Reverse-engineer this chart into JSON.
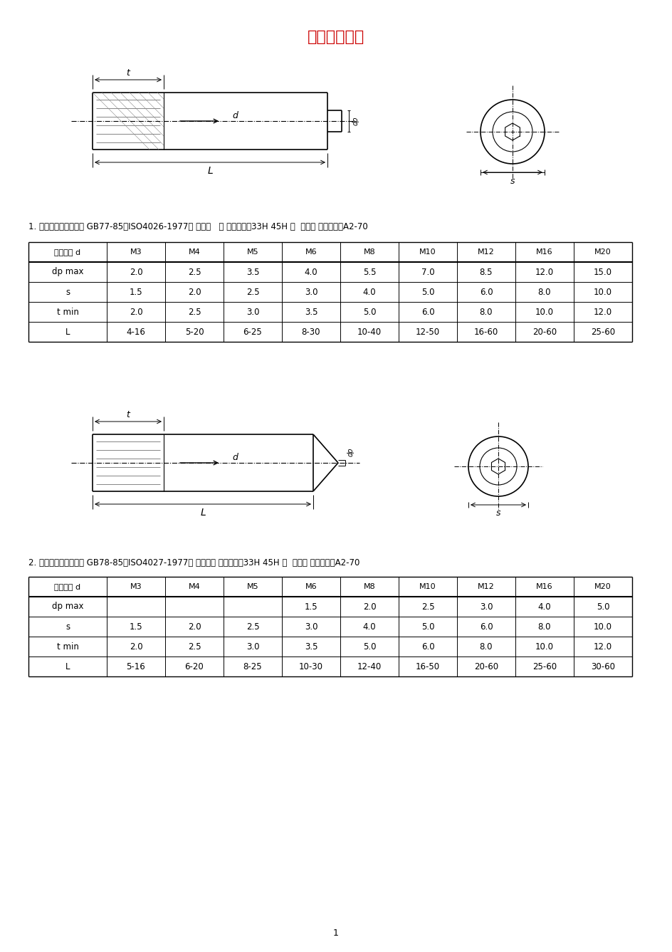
{
  "title": "螺钉国标图示",
  "title_color": "#cc0000",
  "bg_color": "#f5f5f5",
  "section1_label": "1. 内六角平端紧定螺钉 GB77-85（ISO4026-1977） 材料：   钢 机械性能：33H 45H ；  不锈钢 机械性能：A2-70",
  "section2_label": "2. 内六角锥端紧定螺钉 GB78-85（ISO4027-1977） 材料：钢 机械性能：33H 45H ；  不锈钢 机械性能：A2-70",
  "table1_header": [
    "螺纹规格 d",
    "M3",
    "M4",
    "M5",
    "M6",
    "M8",
    "M10",
    "M12",
    "M16",
    "M20"
  ],
  "table1_rows": [
    [
      "dp max",
      "2.0",
      "2.5",
      "3.5",
      "4.0",
      "5.5",
      "7.0",
      "8.5",
      "12.0",
      "15.0"
    ],
    [
      "s",
      "1.5",
      "2.0",
      "2.5",
      "3.0",
      "4.0",
      "5.0",
      "6.0",
      "8.0",
      "10.0"
    ],
    [
      "t min",
      "2.0",
      "2.5",
      "3.0",
      "3.5",
      "5.0",
      "6.0",
      "8.0",
      "10.0",
      "12.0"
    ],
    [
      "L",
      "4-16",
      "5-20",
      "6-25",
      "8-30",
      "10-40",
      "12-50",
      "16-60",
      "20-60",
      "25-60"
    ]
  ],
  "table2_header": [
    "螺纹规格 d",
    "M3",
    "M4",
    "M5",
    "M6",
    "M8",
    "M10",
    "M12",
    "M16",
    "M20"
  ],
  "table2_rows": [
    [
      "dp max",
      "",
      "",
      "",
      "1.5",
      "2.0",
      "2.5",
      "3.0",
      "4.0",
      "5.0"
    ],
    [
      "s",
      "1.5",
      "2.0",
      "2.5",
      "3.0",
      "4.0",
      "5.0",
      "6.0",
      "8.0",
      "10.0"
    ],
    [
      "t min",
      "2.0",
      "2.5",
      "3.0",
      "3.5",
      "5.0",
      "6.0",
      "8.0",
      "10.0",
      "12.0"
    ],
    [
      "L",
      "5-16",
      "6-20",
      "8-25",
      "10-30",
      "12-40",
      "16-50",
      "20-60",
      "25-60",
      "30-60"
    ]
  ]
}
